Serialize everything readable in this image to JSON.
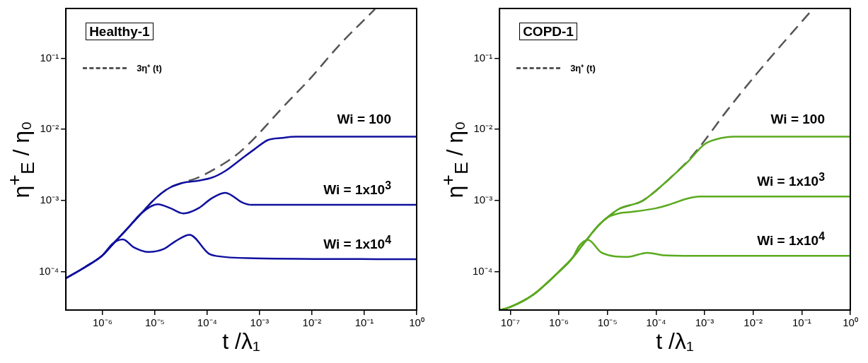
{
  "chart_data": [
    {
      "type": "line",
      "title": "Healthy-1",
      "xlabel": "t /λ₁",
      "ylabel": "η$^{+}$$_{E}$ / η₀",
      "log": "xy",
      "grid": false,
      "legend": "top left",
      "marker": "none",
      "xlim": [
        2e-07,
        1
      ],
      "ylim": [
        2.9e-05,
        0.5
      ],
      "xticks": [
        {
          "value": 1e-06,
          "label": "10⁻⁶"
        },
        {
          "value": 1e-05,
          "label": "10⁻⁵"
        },
        {
          "value": 0.0001,
          "label": "10⁻⁴"
        },
        {
          "value": 0.001,
          "label": "10⁻³"
        },
        {
          "value": 0.01,
          "label": "10⁻²"
        },
        {
          "value": 0.1,
          "label": "10⁻¹"
        },
        {
          "value": 1,
          "label": "10⁰"
        }
      ],
      "yticks": [
        {
          "value": 0.0001,
          "label": "10⁻⁴"
        },
        {
          "value": 0.001,
          "label": "10⁻³"
        },
        {
          "value": 0.01,
          "label": "10⁻²"
        },
        {
          "value": 0.1,
          "label": "10⁻¹"
        }
      ],
      "series": [
        {
          "name": "3η⁺ (t)",
          "color": "#555555",
          "line_style": "dashed",
          "x": [
            2e-07,
            4.7e-07,
            1e-06,
            1.58e-06,
            2.95e-06,
            5.5e-06,
            1.02e-05,
            1.9e-05,
            3.5e-05,
            6.6e-05,
            0.00022,
            0.00042,
            0.00078,
            0.0027,
            0.0093,
            0.032,
            0.16
          ],
          "values": [
            8.1e-05,
            0.000117,
            0.00017,
            0.000245,
            0.0004,
            0.00066,
            0.00107,
            0.00151,
            0.0018,
            0.0021,
            0.0034,
            0.0048,
            0.0074,
            0.02,
            0.052,
            0.148,
            0.49
          ]
        },
        {
          "name": "Wi = 100",
          "color": "#1010a0",
          "line_style": "solid",
          "x": [
            2e-07,
            4.7e-07,
            1e-06,
            1.58e-06,
            2.95e-06,
            5.5e-06,
            1.02e-05,
            1.9e-05,
            3.5e-05,
            6.6e-05,
            0.000123,
            0.00022,
            0.00042,
            0.00078,
            0.00145,
            0.0027,
            0.005,
            1
          ],
          "values": [
            8.1e-05,
            0.000117,
            0.00017,
            0.000245,
            0.0004,
            0.00066,
            0.00107,
            0.00151,
            0.00178,
            0.0019,
            0.0021,
            0.0026,
            0.0037,
            0.0052,
            0.0071,
            0.0076,
            0.0079,
            0.0079
          ]
        },
        {
          "name": "Wi = 1x10$^{3}$",
          "color": "#1010a0",
          "line_style": "solid",
          "x": [
            2e-07,
            4.7e-07,
            1e-06,
            1.58e-06,
            2.95e-06,
            5.5e-06,
            1.15e-05,
            2e-05,
            3.5e-05,
            7e-05,
            0.00012,
            0.00022,
            0.00048,
            0.00069,
            1
          ],
          "values": [
            8.1e-05,
            0.000117,
            0.00017,
            0.000245,
            0.0004,
            0.00066,
            0.00089,
            0.00078,
            0.00066,
            0.00079,
            0.00107,
            0.00129,
            0.00093,
            0.00087,
            0.00087
          ]
        },
        {
          "name": "Wi = 1x10$^{4}$",
          "color": "#1010a0",
          "line_style": "solid",
          "x": [
            2e-07,
            4.7e-07,
            1e-06,
            1.58e-06,
            2.45e-06,
            4e-06,
            7.6e-06,
            1.5e-05,
            2.5e-05,
            4.6e-05,
            0.000107,
            0.000155,
            0.00078,
            1
          ],
          "values": [
            8.1e-05,
            0.000117,
            0.00017,
            0.00025,
            0.000285,
            0.00022,
            0.00019,
            0.00021,
            0.00027,
            0.00033,
            0.00018,
            0.000166,
            0.000155,
            0.00015
          ]
        }
      ]
    },
    {
      "type": "line",
      "title": "COPD-1",
      "xlabel": "t /λ₁",
      "ylabel": "η$^{+}$$_{E}$ / η₀",
      "log": "xy",
      "grid": false,
      "legend": "top left",
      "marker": "none",
      "xlim": [
        6e-08,
        1
      ],
      "ylim": [
        2.9e-05,
        0.5
      ],
      "xticks": [
        {
          "value": 1e-07,
          "label": "10⁻⁷"
        },
        {
          "value": 1e-06,
          "label": "10⁻⁶"
        },
        {
          "value": 1e-05,
          "label": "10⁻⁵"
        },
        {
          "value": 0.0001,
          "label": "10⁻⁴"
        },
        {
          "value": 0.001,
          "label": "10⁻³"
        },
        {
          "value": 0.01,
          "label": "10⁻²"
        },
        {
          "value": 0.1,
          "label": "10⁻¹"
        },
        {
          "value": 1,
          "label": "10⁰"
        }
      ],
      "yticks": [
        {
          "value": 0.0001,
          "label": "10⁻⁴"
        },
        {
          "value": 0.001,
          "label": "10⁻³"
        },
        {
          "value": 0.01,
          "label": "10⁻²"
        },
        {
          "value": 0.1,
          "label": "10⁻¹"
        }
      ],
      "series": [
        {
          "name": "3η⁺ (t)",
          "color": "#555555",
          "line_style": "dashed",
          "x": [
            6.2e-08,
            1e-07,
            3e-07,
            1e-06,
            1.95e-06,
            3.4e-06,
            6.6e-06,
            1e-05,
            1.7e-05,
            5.1e-05,
            0.0001,
            0.0002,
            0.00045,
            0.00078,
            0.003,
            0.0117,
            0.155
          ],
          "values": [
            2.9e-05,
            3.2e-05,
            4.8e-05,
            0.0001,
            0.00016,
            0.00026,
            0.00045,
            0.00058,
            0.00076,
            0.00098,
            0.00138,
            0.0021,
            0.0036,
            0.0056,
            0.019,
            0.06,
            0.46
          ]
        },
        {
          "name": "Wi = 100",
          "color": "#5aaa1e",
          "line_style": "solid",
          "x": [
            6.2e-08,
            1e-07,
            3e-07,
            1e-06,
            1.95e-06,
            3.4e-06,
            6.6e-06,
            1e-05,
            1.7e-05,
            5.1e-05,
            0.0001,
            0.0002,
            0.00045,
            0.001,
            0.0023,
            0.0039,
            1
          ],
          "values": [
            2.9e-05,
            3.2e-05,
            4.8e-05,
            0.0001,
            0.00016,
            0.00026,
            0.00045,
            0.00058,
            0.00076,
            0.00098,
            0.00138,
            0.0021,
            0.0035,
            0.0062,
            0.0076,
            0.0079,
            0.0079
          ]
        },
        {
          "name": "Wi = 1x10$^{3}$",
          "color": "#5aaa1e",
          "line_style": "solid",
          "x": [
            6.2e-08,
            1e-07,
            3e-07,
            1e-06,
            1.95e-06,
            3.4e-06,
            6.6e-06,
            1e-05,
            1.7e-05,
            3e-05,
            0.0001,
            0.0002,
            0.00045,
            0.00078,
            1
          ],
          "values": [
            2.9e-05,
            3.2e-05,
            4.8e-05,
            0.0001,
            0.00016,
            0.00026,
            0.00045,
            0.00058,
            0.00066,
            0.00069,
            0.00078,
            0.00089,
            0.00107,
            0.00114,
            0.00114
          ]
        },
        {
          "name": "Wi = 1x10$^{4}$",
          "color": "#5aaa1e",
          "line_style": "solid",
          "x": [
            6.2e-08,
            1e-07,
            3e-07,
            1e-06,
            1.95e-06,
            2.6e-06,
            4e-06,
            7.6e-06,
            2.6e-05,
            6.6e-05,
            0.00015,
            0.00078,
            1
          ],
          "values": [
            2.9e-05,
            3.2e-05,
            4.8e-05,
            0.0001,
            0.00016,
            0.00023,
            0.00028,
            0.000185,
            0.000162,
            0.000185,
            0.00017,
            0.000167,
            0.000167
          ]
        }
      ]
    }
  ]
}
